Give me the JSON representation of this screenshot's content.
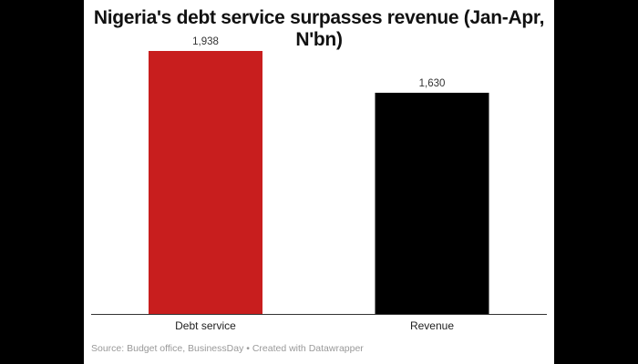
{
  "chart_data": {
    "type": "bar",
    "title": "Nigeria's debt service surpasses revenue (Jan-Apr, N'bn)",
    "categories": [
      "Debt service",
      "Revenue"
    ],
    "values": [
      1938,
      1630
    ],
    "value_labels": [
      "1,938",
      "1,630"
    ],
    "colors": [
      "#c81e1e",
      "#000000"
    ],
    "ylim": [
      0,
      1938
    ],
    "grid": false,
    "source": "Source: Budget office, BusinessDay • Created with Datawrapper"
  }
}
